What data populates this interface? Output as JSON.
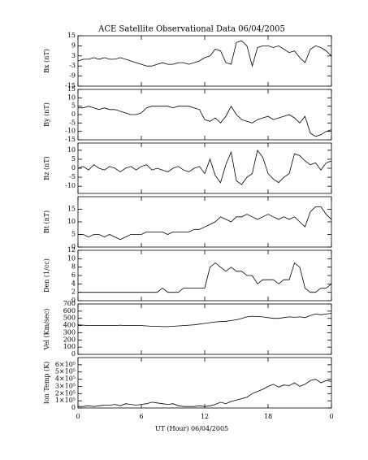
{
  "title": "ACE Satellite Observational Data   06/04/2005",
  "xlabel": "UT (Hour)   06/04/2005",
  "chart_data": [
    {
      "type": "line",
      "ylabel": "Bx (nT)",
      "color": "#000",
      "xlim": [
        0,
        24
      ],
      "xticks": [
        0,
        6,
        12,
        18,
        {
          "value": 24,
          "label": "0"
        }
      ],
      "ylim": [
        -15,
        15
      ],
      "yticks": [
        -15,
        -9,
        -3,
        3,
        9,
        15
      ],
      "x": [
        0,
        0.5,
        1,
        1.5,
        2,
        2.5,
        3,
        3.5,
        4,
        4.5,
        5,
        5.5,
        6,
        6.5,
        7,
        7.5,
        8,
        8.5,
        9,
        9.5,
        10,
        10.5,
        11,
        11.5,
        12,
        12.5,
        13,
        13.5,
        14,
        14.5,
        15,
        15.5,
        16,
        16.5,
        17,
        17.5,
        18,
        18.5,
        19,
        19.5,
        20,
        20.5,
        21,
        21.5,
        22,
        22.5,
        23,
        23.5,
        24
      ],
      "values": [
        0,
        1,
        1,
        2,
        1,
        2,
        1,
        1,
        2,
        1,
        0,
        -1,
        -2,
        -3,
        -3,
        -2,
        -1,
        -2,
        -2,
        -1,
        -1,
        -2,
        -1,
        0,
        2,
        3,
        7,
        6,
        -1,
        -2,
        11,
        12,
        9,
        -3,
        8,
        9,
        9,
        8,
        9,
        7,
        5,
        6,
        2,
        -1,
        7,
        9,
        8,
        6,
        3
      ]
    },
    {
      "type": "line",
      "ylabel": "By (nT)",
      "color": "#000",
      "xlim": [
        0,
        24
      ],
      "xticks": [
        0,
        6,
        12,
        18,
        {
          "value": 24,
          "label": "0"
        }
      ],
      "ylim": [
        -15,
        15
      ],
      "yticks": [
        -15,
        -10,
        -5,
        0,
        5,
        10,
        15
      ],
      "x": [
        0,
        0.5,
        1,
        1.5,
        2,
        2.5,
        3,
        3.5,
        4,
        4.5,
        5,
        5.5,
        6,
        6.5,
        7,
        7.5,
        8,
        8.5,
        9,
        9.5,
        10,
        10.5,
        11,
        11.5,
        12,
        12.5,
        13,
        13.5,
        14,
        14.5,
        15,
        15.5,
        16,
        16.5,
        17,
        17.5,
        18,
        18.5,
        19,
        19.5,
        20,
        20.5,
        21,
        21.5,
        22,
        22.5,
        23,
        23.5,
        24
      ],
      "values": [
        4,
        4,
        5,
        4,
        3,
        4,
        3,
        3,
        2,
        1,
        0,
        0,
        1,
        4,
        5,
        5,
        5,
        5,
        4,
        5,
        5,
        5,
        4,
        3,
        -3,
        -4,
        -2,
        -5,
        -1,
        5,
        0,
        -3,
        -4,
        -5,
        -3,
        -2,
        -1,
        -3,
        -2,
        -1,
        0,
        -2,
        -5,
        -1,
        -11,
        -13,
        -12,
        -10,
        -9
      ]
    },
    {
      "type": "line",
      "ylabel": "Bz (nT)",
      "color": "#000",
      "xlim": [
        0,
        24
      ],
      "xticks": [
        0,
        6,
        12,
        18,
        {
          "value": 24,
          "label": "0"
        }
      ],
      "ylim": [
        -14,
        14
      ],
      "yticks": [
        -10,
        -5,
        0,
        5,
        10
      ],
      "x": [
        0,
        0.5,
        1,
        1.5,
        2,
        2.5,
        3,
        3.5,
        4,
        4.5,
        5,
        5.5,
        6,
        6.5,
        7,
        7.5,
        8,
        8.5,
        9,
        9.5,
        10,
        10.5,
        11,
        11.5,
        12,
        12.5,
        13,
        13.5,
        14,
        14.5,
        15,
        15.5,
        16,
        16.5,
        17,
        17.5,
        18,
        18.5,
        19,
        19.5,
        20,
        20.5,
        21,
        21.5,
        22,
        22.5,
        23,
        23.5,
        24
      ],
      "values": [
        0,
        1,
        -1,
        2,
        0,
        -1,
        1,
        0,
        -2,
        0,
        1,
        -1,
        1,
        2,
        -1,
        0,
        -1,
        -2,
        0,
        1,
        -1,
        -2,
        0,
        1,
        -3,
        5,
        -4,
        -8,
        2,
        9,
        -7,
        -9,
        -5,
        -3,
        10,
        6,
        -3,
        -6,
        -8,
        -5,
        -3,
        8,
        7,
        4,
        2,
        3,
        -1,
        3,
        4
      ]
    },
    {
      "type": "line",
      "ylabel": "Bt (nT)",
      "color": "#000",
      "xlim": [
        0,
        24
      ],
      "xticks": [
        0,
        6,
        12,
        18,
        {
          "value": 24,
          "label": "0"
        }
      ],
      "ylim": [
        0,
        20
      ],
      "yticks": [
        0,
        5,
        10,
        15
      ],
      "x": [
        0,
        0.5,
        1,
        1.5,
        2,
        2.5,
        3,
        3.5,
        4,
        4.5,
        5,
        5.5,
        6,
        6.5,
        7,
        7.5,
        8,
        8.5,
        9,
        9.5,
        10,
        10.5,
        11,
        11.5,
        12,
        12.5,
        13,
        13.5,
        14,
        14.5,
        15,
        15.5,
        16,
        16.5,
        17,
        17.5,
        18,
        18.5,
        19,
        19.5,
        20,
        20.5,
        21,
        21.5,
        22,
        22.5,
        23,
        23.5,
        24
      ],
      "values": [
        5,
        5,
        4,
        5,
        5,
        4,
        5,
        4,
        3,
        4,
        5,
        5,
        5,
        6,
        6,
        6,
        6,
        5,
        6,
        6,
        6,
        6,
        7,
        7,
        8,
        9,
        10,
        12,
        11,
        10,
        12,
        12,
        13,
        12,
        11,
        12,
        13,
        12,
        11,
        12,
        11,
        12,
        10,
        8,
        14,
        16,
        16,
        13,
        11
      ]
    },
    {
      "type": "line",
      "ylabel": "Den (1/cc)",
      "color": "#000",
      "xlim": [
        0,
        24
      ],
      "xticks": [
        0,
        6,
        12,
        18,
        {
          "value": 24,
          "label": "0"
        }
      ],
      "ylim": [
        0,
        12
      ],
      "yticks": [
        0,
        2,
        4,
        6,
        8,
        10,
        12
      ],
      "x": [
        0,
        0.5,
        1,
        1.5,
        2,
        2.5,
        3,
        3.5,
        4,
        4.5,
        5,
        5.5,
        6,
        6.5,
        7,
        7.5,
        8,
        8.5,
        9,
        9.5,
        10,
        10.5,
        11,
        11.5,
        12,
        12.5,
        13,
        13.5,
        14,
        14.5,
        15,
        15.5,
        16,
        16.5,
        17,
        17.5,
        18,
        18.5,
        19,
        19.5,
        20,
        20.5,
        21,
        21.5,
        22,
        22.5,
        23,
        23.5,
        24
      ],
      "values": [
        2,
        2,
        2,
        2,
        2,
        2,
        2,
        2,
        2,
        2,
        2,
        2,
        2,
        2,
        2,
        2,
        3,
        2,
        2,
        2,
        3,
        3,
        3,
        3,
        3,
        8,
        9,
        8,
        7,
        8,
        7,
        7,
        6,
        6,
        4,
        5,
        5,
        5,
        4,
        5,
        5,
        9,
        8,
        3,
        2,
        2,
        3,
        3,
        4
      ]
    },
    {
      "type": "line",
      "ylabel": "Vel (Km/sec)",
      "color": "#000",
      "xlim": [
        0,
        24
      ],
      "xticks": [
        0,
        6,
        12,
        18,
        {
          "value": 24,
          "label": "0"
        }
      ],
      "ylim": [
        0,
        700
      ],
      "yticks": [
        0,
        100,
        200,
        300,
        400,
        500,
        600,
        700
      ],
      "x": [
        0,
        0.5,
        1,
        1.5,
        2,
        2.5,
        3,
        3.5,
        4,
        4.5,
        5,
        5.5,
        6,
        6.5,
        7,
        7.5,
        8,
        8.5,
        9,
        9.5,
        10,
        10.5,
        11,
        11.5,
        12,
        12.5,
        13,
        13.5,
        14,
        14.5,
        15,
        15.5,
        16,
        16.5,
        17,
        17.5,
        18,
        18.5,
        19,
        19.5,
        20,
        20.5,
        21,
        21.5,
        22,
        22.5,
        23,
        23.5,
        24
      ],
      "values": [
        410,
        405,
        400,
        400,
        400,
        400,
        400,
        400,
        405,
        400,
        400,
        400,
        400,
        395,
        390,
        390,
        385,
        385,
        390,
        395,
        400,
        405,
        410,
        420,
        430,
        440,
        450,
        455,
        460,
        470,
        480,
        500,
        520,
        530,
        525,
        520,
        510,
        500,
        500,
        510,
        520,
        515,
        520,
        510,
        540,
        560,
        550,
        560,
        570
      ]
    },
    {
      "type": "line",
      "ylabel": "Ion Temp (K)",
      "color": "#000",
      "xlim": [
        0,
        24
      ],
      "xticks": [
        0,
        6,
        12,
        18,
        {
          "value": 24,
          "label": "0"
        }
      ],
      "ylim": [
        0,
        700000
      ],
      "yticks": [
        0,
        {
          "value": 100000,
          "label": "1×10⁵"
        },
        {
          "value": 200000,
          "label": "2×10⁵"
        },
        {
          "value": 300000,
          "label": "3×10⁵"
        },
        {
          "value": 400000,
          "label": "4×10⁵"
        },
        {
          "value": 500000,
          "label": "5×10⁵"
        },
        {
          "value": 600000,
          "label": "6×10⁵"
        }
      ],
      "x": [
        0,
        0.5,
        1,
        1.5,
        2,
        2.5,
        3,
        3.5,
        4,
        4.5,
        5,
        5.5,
        6,
        6.5,
        7,
        7.5,
        8,
        8.5,
        9,
        9.5,
        10,
        10.5,
        11,
        11.5,
        12,
        12.5,
        13,
        13.5,
        14,
        14.5,
        15,
        15.5,
        16,
        16.5,
        17,
        17.5,
        18,
        18.5,
        19,
        19.5,
        20,
        20.5,
        21,
        21.5,
        22,
        22.5,
        23,
        23.5,
        24
      ],
      "values": [
        20000,
        20000,
        30000,
        20000,
        30000,
        40000,
        40000,
        50000,
        30000,
        60000,
        50000,
        40000,
        50000,
        60000,
        80000,
        70000,
        60000,
        50000,
        60000,
        30000,
        20000,
        20000,
        20000,
        30000,
        20000,
        30000,
        50000,
        80000,
        60000,
        90000,
        110000,
        130000,
        150000,
        200000,
        230000,
        260000,
        300000,
        330000,
        290000,
        320000,
        310000,
        350000,
        300000,
        330000,
        380000,
        400000,
        350000,
        380000,
        370000
      ]
    }
  ]
}
